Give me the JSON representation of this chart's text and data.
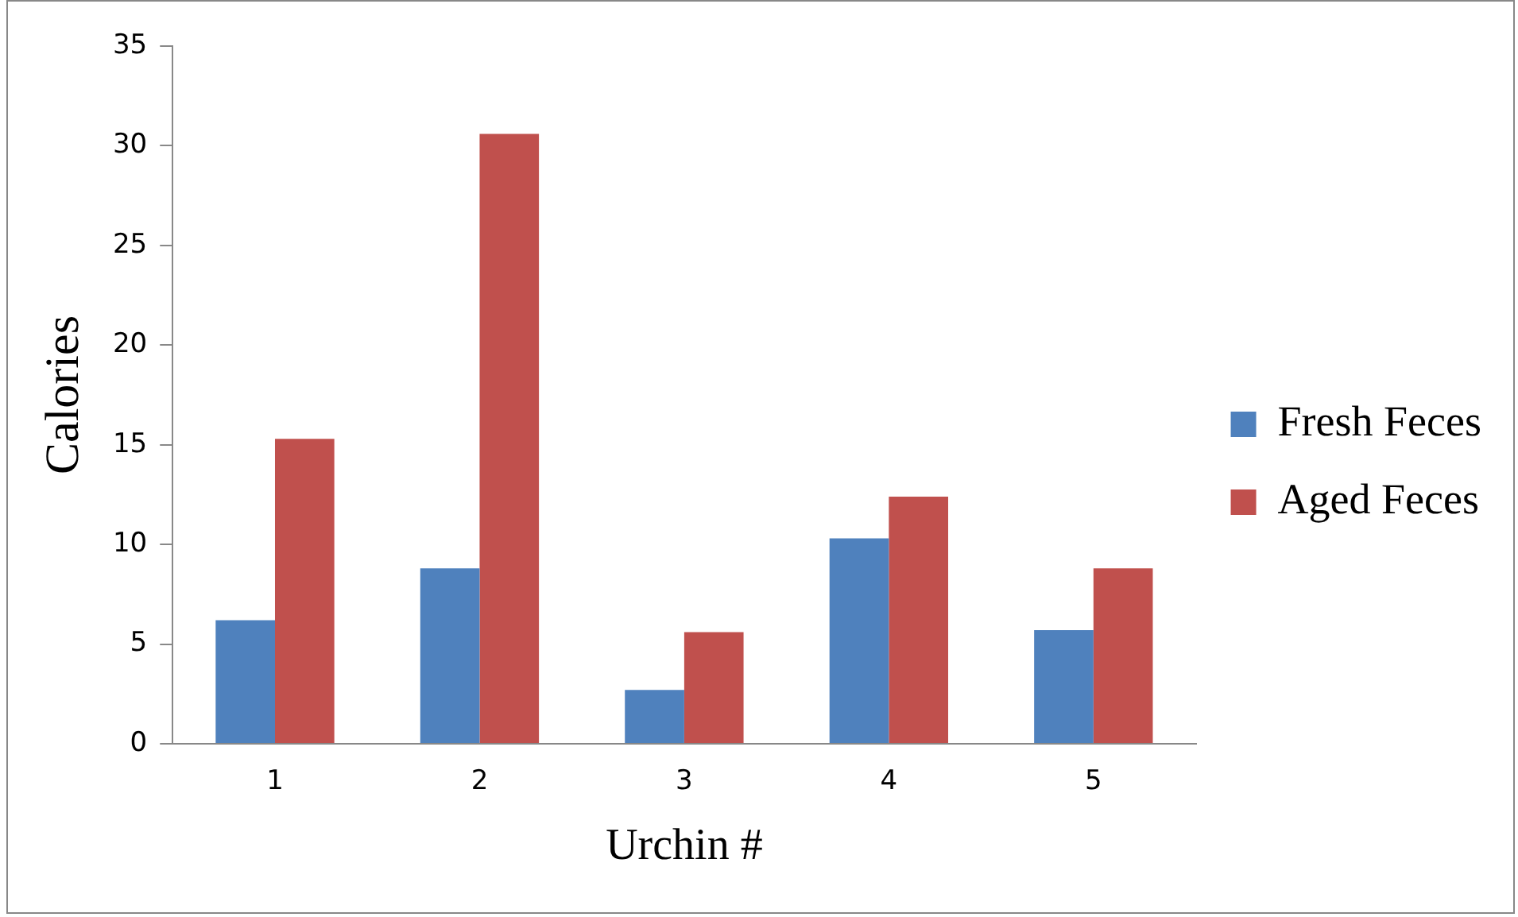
{
  "chart_data": {
    "type": "bar",
    "xlabel": "Urchin #",
    "ylabel": "Calories",
    "categories": [
      "1",
      "2",
      "3",
      "4",
      "5"
    ],
    "series": [
      {
        "name": "Fresh Feces",
        "color": "#4f81bd",
        "values": [
          6.2,
          8.8,
          2.7,
          10.3,
          5.7
        ]
      },
      {
        "name": "Aged Feces",
        "color": "#c0504d",
        "values": [
          15.3,
          30.6,
          5.6,
          12.4,
          8.8
        ]
      }
    ],
    "ylim": [
      0,
      35
    ],
    "yticks": [
      0,
      5,
      10,
      15,
      20,
      25,
      30,
      35
    ],
    "grid": false,
    "legend": "right"
  }
}
